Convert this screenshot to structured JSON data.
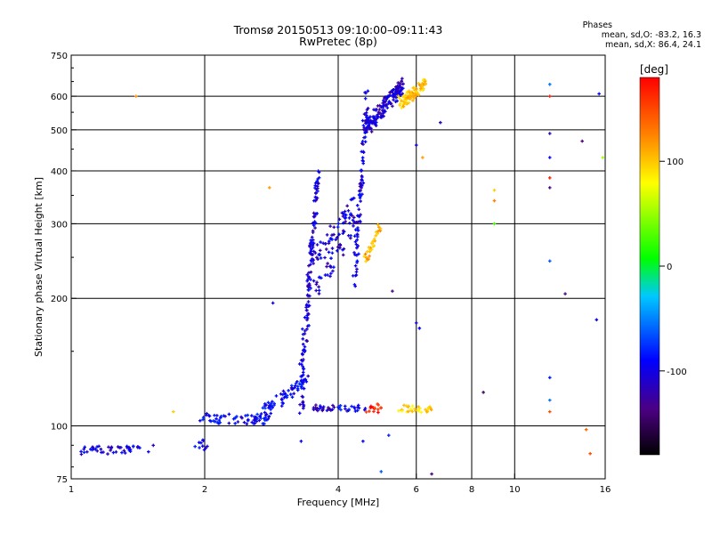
{
  "header": {
    "title_line1": "Tromsø 20150513 09:10:00–09:11:43",
    "title_line2": "RwPretec (8p)",
    "phases_heading": "Phases",
    "phases_line1": "mean, sd,O: -83.2, 16.3",
    "phases_line2": "mean, sd,X: 86.4, 24.1"
  },
  "colorbar": {
    "unit_label": "[deg]",
    "ticks": [
      {
        "value": 100,
        "label": "100"
      },
      {
        "value": 0,
        "label": "0"
      },
      {
        "value": -100,
        "label": "-100"
      }
    ],
    "range": [
      -180,
      180
    ]
  },
  "chart_data": {
    "type": "scatter",
    "xlabel": "Frequency [MHz]",
    "ylabel": "Stationary phase Virtual Height [km]",
    "x_scale": "log",
    "y_scale": "log",
    "xlim": [
      1,
      16
    ],
    "ylim": [
      75,
      750
    ],
    "x_ticks": [
      {
        "value": 1,
        "label": "1"
      },
      {
        "value": 2,
        "label": "2"
      },
      {
        "value": 4,
        "label": "4"
      },
      {
        "value": 6,
        "label": "6"
      },
      {
        "value": 8,
        "label": "8"
      },
      {
        "value": 10,
        "label": "10"
      },
      {
        "value": 16,
        "label": "16"
      }
    ],
    "x_gridlines": [
      2,
      4,
      6,
      8,
      10
    ],
    "y_ticks": [
      {
        "value": 75,
        "label": "75"
      },
      {
        "value": 100,
        "label": "100"
      },
      {
        "value": 200,
        "label": "200"
      },
      {
        "value": 300,
        "label": "300"
      },
      {
        "value": 400,
        "label": "400"
      },
      {
        "value": 500,
        "label": "500"
      },
      {
        "value": 600,
        "label": "600"
      },
      {
        "value": 750,
        "label": "750"
      }
    ],
    "y_gridlines": [
      100,
      200,
      300,
      400,
      500,
      600
    ],
    "grid": true,
    "color_meaning": "phase (deg)",
    "groups": [
      {
        "kind": "band",
        "f1": 1.02,
        "f2": 1.55,
        "h1": 87,
        "h2": 89,
        "spread": 2,
        "phase": -110,
        "n": 45
      },
      {
        "kind": "band",
        "f1": 1.9,
        "f2": 2.05,
        "h1": 90,
        "h2": 90,
        "spread": 3,
        "phase": -105,
        "n": 10
      },
      {
        "kind": "band",
        "f1": 1.95,
        "f2": 2.8,
        "h1": 104,
        "h2": 104,
        "spread": 3,
        "phase": -100,
        "n": 60
      },
      {
        "kind": "band",
        "f1": 2.6,
        "f2": 3.4,
        "h1": 104,
        "h2": 128,
        "spread": 4,
        "phase": -100,
        "n": 70
      },
      {
        "kind": "band",
        "f1": 3.3,
        "f2": 3.6,
        "h1": 122,
        "h2": 395,
        "spread": 20,
        "phase": -110,
        "n": 150
      },
      {
        "kind": "band",
        "f1": 3.5,
        "f2": 4.4,
        "h1": 225,
        "h2": 318,
        "spread": 35,
        "phase": -110,
        "n": 100
      },
      {
        "kind": "band",
        "f1": 4.35,
        "f2": 4.65,
        "h1": 220,
        "h2": 620,
        "spread": 25,
        "phase": -110,
        "n": 90
      },
      {
        "kind": "band",
        "f1": 4.6,
        "f2": 5.6,
        "h1": 500,
        "h2": 640,
        "spread": 25,
        "phase": -115,
        "n": 160
      },
      {
        "kind": "band",
        "f1": 5.5,
        "f2": 6.3,
        "h1": 580,
        "h2": 640,
        "spread": 20,
        "phase": 105,
        "n": 80
      },
      {
        "kind": "band",
        "f1": 4.6,
        "f2": 5.0,
        "h1": 245,
        "h2": 300,
        "spread": 6,
        "phase": 110,
        "n": 30
      },
      {
        "kind": "band",
        "f1": 3.5,
        "f2": 4.0,
        "h1": 110,
        "h2": 110,
        "spread": 2,
        "phase": -120,
        "n": 25
      },
      {
        "kind": "band",
        "f1": 4.0,
        "f2": 4.6,
        "h1": 110,
        "h2": 110,
        "spread": 2,
        "phase": -100,
        "n": 20
      },
      {
        "kind": "band",
        "f1": 4.6,
        "f2": 5.0,
        "h1": 110,
        "h2": 110,
        "spread": 3,
        "phase": 170,
        "n": 15
      },
      {
        "kind": "band",
        "f1": 5.5,
        "f2": 6.5,
        "h1": 110,
        "h2": 109,
        "spread": 2,
        "phase": 95,
        "n": 30
      }
    ],
    "isolated_points": [
      {
        "f": 12.0,
        "h": 640,
        "phase": -60
      },
      {
        "f": 12.0,
        "h": 600,
        "phase": 170
      },
      {
        "f": 12.0,
        "h": 490,
        "phase": -120
      },
      {
        "f": 12.0,
        "h": 430,
        "phase": -100
      },
      {
        "f": 12.0,
        "h": 385,
        "phase": 170
      },
      {
        "f": 12.0,
        "h": 365,
        "phase": -140
      },
      {
        "f": 12.0,
        "h": 245,
        "phase": -70
      },
      {
        "f": 12.0,
        "h": 130,
        "phase": -90
      },
      {
        "f": 12.0,
        "h": 115,
        "phase": -60
      },
      {
        "f": 12.0,
        "h": 108,
        "phase": 150
      },
      {
        "f": 13.0,
        "h": 205,
        "phase": -140
      },
      {
        "f": 14.2,
        "h": 470,
        "phase": -140
      },
      {
        "f": 15.5,
        "h": 608,
        "phase": -100
      },
      {
        "f": 15.8,
        "h": 430,
        "phase": 50
      },
      {
        "f": 15.3,
        "h": 178,
        "phase": -110
      },
      {
        "f": 9.0,
        "h": 360,
        "phase": 100
      },
      {
        "f": 9.0,
        "h": 340,
        "phase": 130
      },
      {
        "f": 9.0,
        "h": 300,
        "phase": 20
      },
      {
        "f": 8.5,
        "h": 120,
        "phase": -150
      },
      {
        "f": 6.0,
        "h": 460,
        "phase": -110
      },
      {
        "f": 6.2,
        "h": 430,
        "phase": 120
      },
      {
        "f": 6.8,
        "h": 520,
        "phase": -120
      },
      {
        "f": 2.8,
        "h": 365,
        "phase": 120
      },
      {
        "f": 2.85,
        "h": 195,
        "phase": -110
      },
      {
        "f": 3.3,
        "h": 92,
        "phase": -100
      },
      {
        "f": 4.55,
        "h": 92,
        "phase": -100
      },
      {
        "f": 5.2,
        "h": 95,
        "phase": -90
      },
      {
        "f": 5.3,
        "h": 208,
        "phase": -140
      },
      {
        "f": 6.0,
        "h": 175,
        "phase": -110
      },
      {
        "f": 6.1,
        "h": 170,
        "phase": -100
      },
      {
        "f": 5.0,
        "h": 78,
        "phase": -70
      },
      {
        "f": 6.5,
        "h": 77,
        "phase": -140
      },
      {
        "f": 1.4,
        "h": 600,
        "phase": 120
      },
      {
        "f": 1.7,
        "h": 108,
        "phase": 100
      },
      {
        "f": 14.5,
        "h": 98,
        "phase": 140
      },
      {
        "f": 14.8,
        "h": 86,
        "phase": 150
      }
    ]
  }
}
